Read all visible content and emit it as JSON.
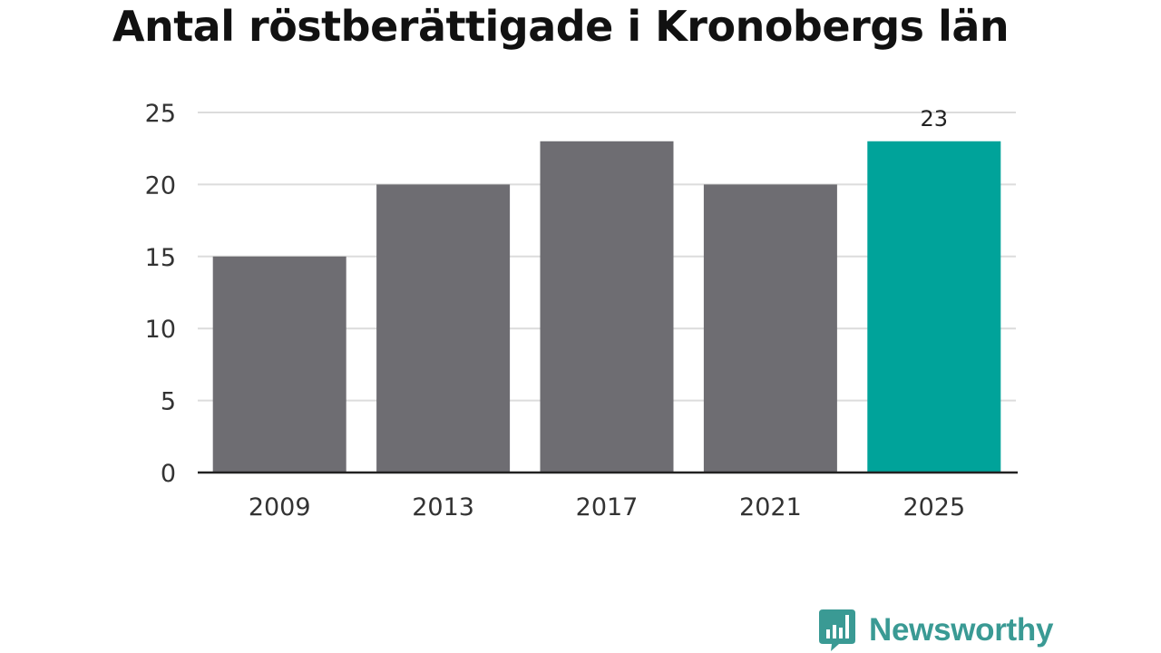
{
  "chart_data": {
    "type": "bar",
    "title": "Antal röstberättigade i Kronobergs län",
    "categories": [
      "2009",
      "2013",
      "2017",
      "2021",
      "2025"
    ],
    "values": [
      15,
      20,
      23,
      20,
      23
    ],
    "ylim": [
      0,
      25
    ],
    "yticks": [
      0,
      5,
      10,
      15,
      20,
      25
    ],
    "grid": true,
    "data_labels": [
      {
        "category": "2025",
        "text": "23"
      }
    ],
    "highlight_category": "2025"
  },
  "colors": {
    "bar": "#6e6d72",
    "highlight": "#00a39a",
    "grid": "#dcdcdc",
    "axis": "#222222",
    "brand": "#3a9a94"
  },
  "brand": {
    "name": "Newsworthy",
    "icon": "newsworthy-logo-icon"
  }
}
